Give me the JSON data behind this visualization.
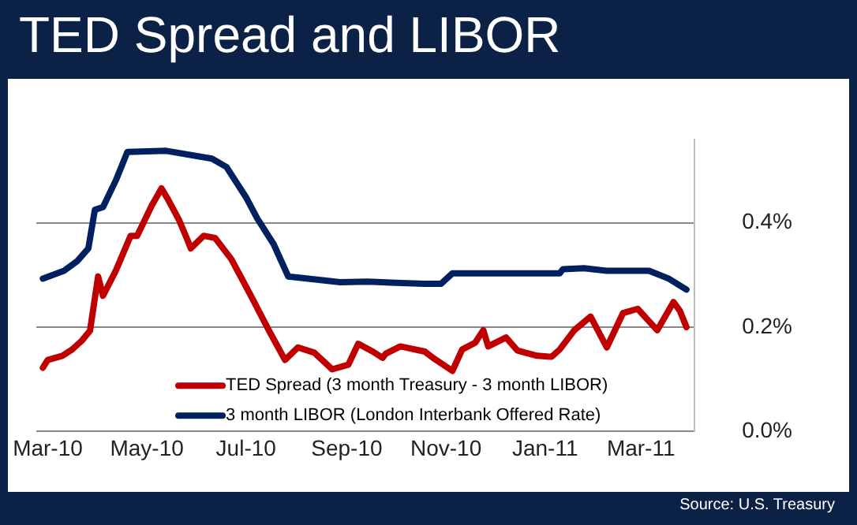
{
  "chart_data": {
    "type": "line",
    "title": "TED Spread and LIBOR",
    "annotations": [
      "Source: U.S. Treasury"
    ],
    "xlim": [
      "2010-02-22",
      "2011-04-03"
    ],
    "xticks": [
      {
        "value": "2010-03-01",
        "label": "Mar-10"
      },
      {
        "value": "2010-05-01",
        "label": "May-10"
      },
      {
        "value": "2010-07-01",
        "label": "Jul-10"
      },
      {
        "value": "2010-09-01",
        "label": "Sep-10"
      },
      {
        "value": "2010-11-01",
        "label": "Nov-10"
      },
      {
        "value": "2011-01-01",
        "label": "Jan-11"
      },
      {
        "value": "2011-03-01",
        "label": "Mar-11"
      }
    ],
    "ylim": [
      0,
      0.56
    ],
    "yticks": [
      {
        "value": 0,
        "label": "0.0%"
      },
      {
        "value": 0.2,
        "label": "0.2%"
      },
      {
        "value": 0.4,
        "label": "0.4%"
      }
    ],
    "grid": "y",
    "legend": "bottom",
    "marker": "none",
    "line_style": "solid",
    "series": [
      {
        "name": "TED Spread (3 month Treasury - 3 month LIBOR)",
        "color": "#c00000",
        "x": [
          "2010-02-26",
          "2010-03-01",
          "2010-03-10",
          "2010-03-16",
          "2010-03-22",
          "2010-03-27",
          "2010-04-01",
          "2010-04-04",
          "2010-04-12",
          "2010-04-21",
          "2010-04-25",
          "2010-05-04",
          "2010-05-10",
          "2010-05-14",
          "2010-05-21",
          "2010-05-26",
          "2010-05-28",
          "2010-06-05",
          "2010-06-12",
          "2010-06-22",
          "2010-07-04",
          "2010-07-15",
          "2010-07-25",
          "2010-08-02",
          "2010-08-12",
          "2010-08-23",
          "2010-09-02",
          "2010-09-08",
          "2010-09-17",
          "2010-09-23",
          "2010-09-25",
          "2010-10-04",
          "2010-10-19",
          "2010-10-24",
          "2010-11-05",
          "2010-11-11",
          "2010-11-19",
          "2010-11-24",
          "2010-11-27",
          "2010-12-08",
          "2010-12-15",
          "2010-12-27",
          "2011-01-05",
          "2011-01-10",
          "2011-01-19",
          "2011-01-29",
          "2011-02-08",
          "2011-02-18",
          "2011-02-27",
          "2011-03-11",
          "2011-03-21",
          "2011-03-25",
          "2011-03-29"
        ],
        "values": [
          0.122,
          0.137,
          0.145,
          0.157,
          0.174,
          0.193,
          0.297,
          0.26,
          0.309,
          0.375,
          0.375,
          0.433,
          0.466,
          0.445,
          0.404,
          0.367,
          0.351,
          0.375,
          0.371,
          0.33,
          0.26,
          0.194,
          0.137,
          0.161,
          0.151,
          0.119,
          0.128,
          0.168,
          0.153,
          0.141,
          0.149,
          0.163,
          0.153,
          0.141,
          0.116,
          0.157,
          0.17,
          0.194,
          0.163,
          0.18,
          0.155,
          0.145,
          0.143,
          0.157,
          0.194,
          0.22,
          0.161,
          0.227,
          0.235,
          0.194,
          0.248,
          0.231,
          0.2
        ]
      },
      {
        "name": "3 month LIBOR (London Interbank Offered Rate)",
        "color": "#002060",
        "x": [
          "2010-02-26",
          "2010-03-11",
          "2010-03-19",
          "2010-03-26",
          "2010-03-30",
          "2010-04-04",
          "2010-04-12",
          "2010-04-19",
          "2010-05-13",
          "2010-06-10",
          "2010-06-19",
          "2010-07-01",
          "2010-07-08",
          "2010-07-18",
          "2010-07-27",
          "2010-08-28",
          "2010-09-14",
          "2010-10-01",
          "2010-10-19",
          "2010-10-29",
          "2010-11-05",
          "2011-01-10",
          "2011-01-12",
          "2011-01-25",
          "2011-02-08",
          "2011-03-06",
          "2011-03-18",
          "2011-03-29"
        ],
        "values": [
          0.293,
          0.308,
          0.326,
          0.351,
          0.425,
          0.43,
          0.482,
          0.536,
          0.538,
          0.523,
          0.507,
          0.449,
          0.408,
          0.359,
          0.297,
          0.286,
          0.287,
          0.285,
          0.283,
          0.283,
          0.303,
          0.303,
          0.311,
          0.313,
          0.308,
          0.308,
          0.293,
          0.272
        ]
      }
    ]
  }
}
